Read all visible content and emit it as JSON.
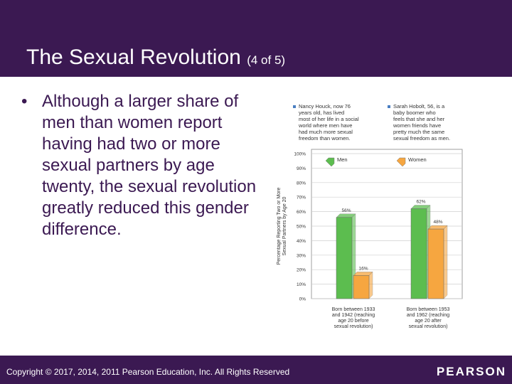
{
  "slide": {
    "title": "The Sexual Revolution",
    "title_suffix": "(4 of 5)",
    "bullet": "Although a larger share of men than women report having had two or more sexual partners by age twenty, the sexual revolution greatly reduced this gender difference.",
    "footer": "Copyright © 2017, 2014, 2011 Pearson Education, Inc. All Rights Reserved",
    "logo": "PEARSON"
  },
  "colors": {
    "header_bg": "#3b1952",
    "men": "#5cbd4f",
    "women": "#f6a640",
    "note_bullet": "#4a7ec1"
  },
  "chart_data": {
    "type": "bar",
    "ylabel": "Percentage Reporting Two or More Sexual Partners by Age 20",
    "ylim": [
      0,
      100
    ],
    "yticks": [
      "0%",
      "10%",
      "20%",
      "30%",
      "40%",
      "50%",
      "60%",
      "70%",
      "80%",
      "90%",
      "100%"
    ],
    "categories": [
      [
        "Born between 1933",
        "and 1942 (reaching",
        "age 20 before",
        "sexual revolution)"
      ],
      [
        "Born between 1953",
        "and 1962 (reaching",
        "age 20 after",
        "sexual revolution)"
      ]
    ],
    "series": [
      {
        "name": "Men",
        "values": [
          56,
          62
        ],
        "labels": [
          "56%",
          "62%"
        ]
      },
      {
        "name": "Women",
        "values": [
          16,
          48
        ],
        "labels": [
          "16%",
          "48%"
        ]
      }
    ],
    "annotations": [
      [
        "Nancy Houck, now 76",
        "years old, has lived",
        "most of her life in a social",
        "world where men have",
        "had much more sexual",
        "freedom than women."
      ],
      [
        "Sarah Hobolt, 56, is a",
        "baby boomer who",
        "feels that she and her",
        "women friends have",
        "pretty much the same",
        "sexual freedom as men."
      ]
    ]
  }
}
